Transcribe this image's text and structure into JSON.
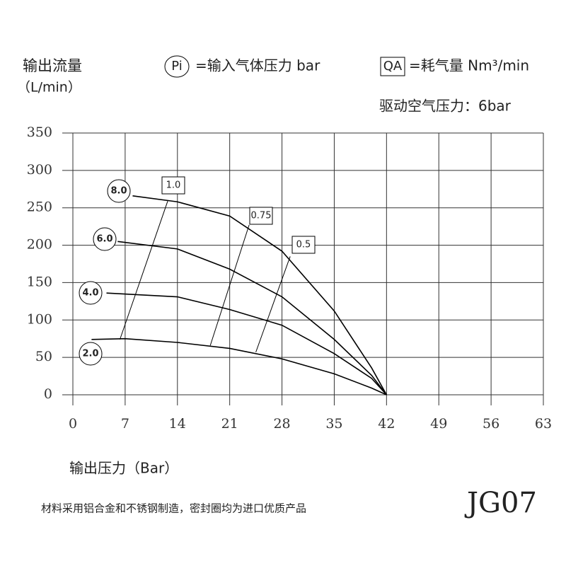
{
  "chart_data": {
    "type": "line",
    "y_label": "输出流量",
    "y_unit": "（L/min）",
    "legend": [
      {
        "symbol": "Pi",
        "text": "=输入气体压力 bar"
      },
      {
        "symbol": "QA",
        "text": "=耗气量 Nm³/min"
      }
    ],
    "subtitle": "驱动空气压力：6bar",
    "x_label": "输出压力（Bar）",
    "note": "材料采用铝合金和不锈钢制造，密封圈均为进口优质产品",
    "model": "JG07",
    "xlim": [
      0,
      63
    ],
    "xticks": [
      0,
      7,
      14,
      21,
      28,
      35,
      42,
      49,
      56,
      63
    ],
    "ylim": [
      0,
      350
    ],
    "yticks": [
      0,
      50,
      100,
      150,
      200,
      250,
      300,
      350
    ],
    "grid": true,
    "color": "#000000",
    "series": [
      {
        "name": "8.0",
        "x": [
          8,
          14,
          21,
          28,
          35,
          40,
          42
        ],
        "values": [
          266,
          258,
          239,
          192,
          112,
          36,
          0
        ]
      },
      {
        "name": "6.0",
        "x": [
          6,
          14,
          21,
          28,
          35,
          40,
          42
        ],
        "values": [
          205,
          195,
          168,
          131,
          74,
          26,
          0
        ]
      },
      {
        "name": "4.0",
        "x": [
          4.5,
          14,
          21,
          28,
          35,
          40,
          42
        ],
        "values": [
          136,
          131,
          114,
          93,
          55,
          22,
          0
        ]
      },
      {
        "name": "2.0",
        "x": [
          2.5,
          7,
          14,
          21,
          28,
          35,
          40,
          42
        ],
        "values": [
          74,
          75,
          70,
          62,
          48,
          28,
          9,
          0
        ]
      }
    ],
    "qa_lines": [
      {
        "name": "1.0",
        "x": [
          6.3,
          12.7
        ],
        "values": [
          74,
          259
        ]
      },
      {
        "name": "0.75",
        "x": [
          18.4,
          23.6
        ],
        "values": [
          66,
          227
        ]
      },
      {
        "name": "0.5",
        "x": [
          24.5,
          29.1
        ],
        "values": [
          57,
          185
        ]
      }
    ]
  }
}
